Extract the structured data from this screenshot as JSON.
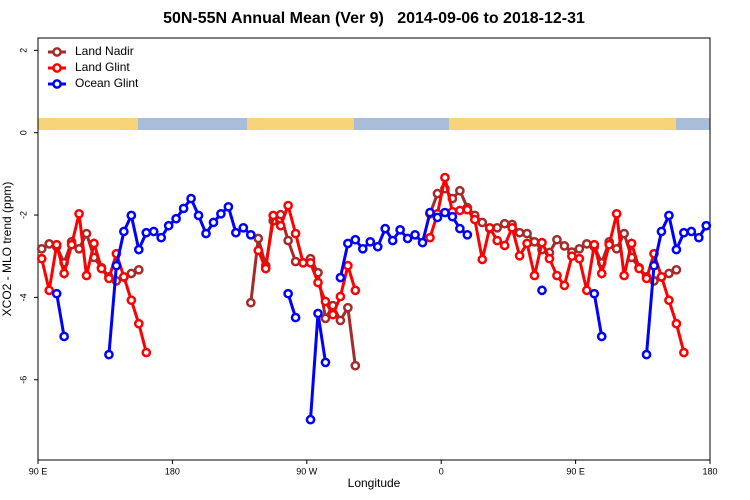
{
  "chart_data": {
    "type": "line",
    "title": "50N-55N Annual Mean (Ver 9)   2014-09-06 to 2018-12-31",
    "x_label": "Longitude",
    "y_label": "XCO2 - MLO trend (ppm)",
    "xlim": [
      90,
      540
    ],
    "xticks": [
      {
        "value": 90,
        "label": "90 E"
      },
      180,
      {
        "value": 270,
        "label": "90 W"
      },
      {
        "value": 360,
        "label": "0"
      },
      {
        "value": 450,
        "label": "90 E"
      },
      {
        "value": 540,
        "label": "180"
      }
    ],
    "ylim": [
      -7.95,
      2.3
    ],
    "yticks": [
      2,
      0,
      -2,
      -4,
      -6
    ],
    "grid": false,
    "legend": "top-left",
    "x": [
      92.5,
      97.5,
      102.5,
      107.5,
      112.5,
      117.5,
      122.5,
      127.5,
      132.5,
      137.5,
      142.5,
      147.5,
      152.5,
      157.5,
      162.5,
      167.5,
      172.5,
      177.5,
      182.5,
      187.5,
      192.5,
      197.5,
      202.5,
      207.5,
      212.5,
      217.5,
      222.5,
      227.5,
      232.5,
      237.5,
      242.5,
      247.5,
      252.5,
      257.5,
      262.5,
      267.5,
      272.5,
      277.5,
      282.5,
      287.5,
      292.5,
      297.5,
      302.5,
      307.5,
      312.5,
      317.5,
      322.5,
      327.5,
      332.5,
      337.5,
      342.5,
      347.5,
      352.5,
      357.5,
      362.5,
      367.5,
      372.5,
      377.5,
      382.5,
      387.5,
      392.5,
      397.5,
      402.5,
      407.5,
      412.5,
      417.5,
      422.5,
      427.5,
      432.5,
      437.5,
      442.5,
      447.5,
      452.5,
      457.5,
      462.5,
      467.5,
      472.5,
      477.5,
      482.5,
      487.5,
      492.5,
      497.5,
      502.5,
      507.5,
      512.5,
      517.5,
      522.5,
      527.5,
      532.5,
      537.5
    ],
    "series": [
      {
        "name": "Land Nadir",
        "color": "#a52a2a",
        "values": [
          -2.82,
          -2.7,
          -2.77,
          -3.16,
          -2.65,
          -2.82,
          -2.45,
          -3.03,
          -3.28,
          -3.5,
          -3.6,
          -3.51,
          -3.42,
          -3.33,
          null,
          null,
          null,
          null,
          null,
          null,
          null,
          null,
          null,
          null,
          null,
          null,
          null,
          null,
          -4.13,
          -2.57,
          -3.23,
          -2.14,
          -1.99,
          -2.62,
          -3.13,
          -3.16,
          -3.06,
          -3.4,
          -4.51,
          -4.2,
          -4.56,
          -4.25,
          -5.66,
          null,
          null,
          null,
          null,
          null,
          null,
          null,
          null,
          null,
          -1.97,
          -1.48,
          -1.36,
          -1.6,
          -1.41,
          -1.82,
          -2.01,
          -2.18,
          -2.33,
          -2.31,
          -2.21,
          -2.23,
          -2.43,
          -2.45,
          -2.65,
          -2.84,
          -2.91,
          -2.6,
          -2.75,
          -2.9,
          -2.82,
          -2.7,
          -2.77,
          -3.16,
          -2.65,
          -2.82,
          -2.45,
          -3.03,
          -3.28,
          -3.5,
          -3.6,
          -3.51,
          -3.42,
          -3.33,
          null,
          null,
          null,
          null
        ]
      },
      {
        "name": "Land Glint",
        "color": "#ff0000",
        "values": [
          -3.06,
          -3.83,
          -2.72,
          -3.42,
          -2.72,
          -1.97,
          -3.47,
          -2.69,
          -3.3,
          -3.54,
          -2.94,
          -3.5,
          -4.07,
          -4.64,
          -5.34,
          null,
          null,
          null,
          null,
          null,
          null,
          null,
          null,
          null,
          null,
          null,
          null,
          null,
          null,
          -2.86,
          -3.3,
          -2.01,
          -2.26,
          -1.77,
          -2.45,
          -3.16,
          -3.16,
          -3.64,
          -4.1,
          -4.42,
          -3.98,
          -3.23,
          -3.83,
          null,
          null,
          null,
          null,
          null,
          null,
          null,
          null,
          null,
          -2.55,
          -1.97,
          -1.09,
          -1.92,
          -1.89,
          -1.87,
          -2.11,
          -3.08,
          -2.31,
          -2.62,
          -2.74,
          -2.31,
          -2.99,
          -2.69,
          -3.47,
          -2.67,
          -3.06,
          -3.47,
          -3.71,
          -3.0,
          -3.06,
          -3.83,
          -2.72,
          -3.42,
          -2.72,
          -1.97,
          -3.47,
          -2.69,
          -3.3,
          -3.54,
          -2.94,
          -3.5,
          -4.07,
          -4.64,
          -5.34,
          null,
          null,
          null
        ]
      },
      {
        "name": "Ocean Glint",
        "color": "#0000ff",
        "values": [
          null,
          null,
          -3.91,
          -4.95,
          null,
          null,
          null,
          null,
          null,
          -5.39,
          -3.23,
          -2.4,
          -2.01,
          -2.84,
          -2.43,
          -2.4,
          -2.55,
          -2.26,
          -2.09,
          -1.84,
          -1.6,
          -2.01,
          -2.45,
          -2.18,
          -1.97,
          -1.8,
          -2.43,
          -2.31,
          -2.48,
          null,
          null,
          null,
          null,
          -3.91,
          -4.49,
          null,
          -6.97,
          -4.39,
          -5.58,
          null,
          -3.52,
          -2.69,
          -2.6,
          -2.82,
          -2.65,
          -2.77,
          -2.33,
          -2.62,
          -2.36,
          -2.57,
          -2.48,
          -2.67,
          -1.94,
          -2.06,
          -1.94,
          -2.04,
          -2.33,
          -2.48,
          null,
          null,
          null,
          null,
          null,
          null,
          null,
          null,
          null,
          -3.83,
          null,
          null,
          null,
          null,
          null,
          null,
          -3.91,
          -4.95,
          null,
          null,
          null,
          null,
          null,
          -5.39,
          -3.23,
          -2.4,
          -2.01,
          -2.84,
          -2.43,
          -2.4,
          -2.55,
          -2.26
        ]
      }
    ]
  }
}
